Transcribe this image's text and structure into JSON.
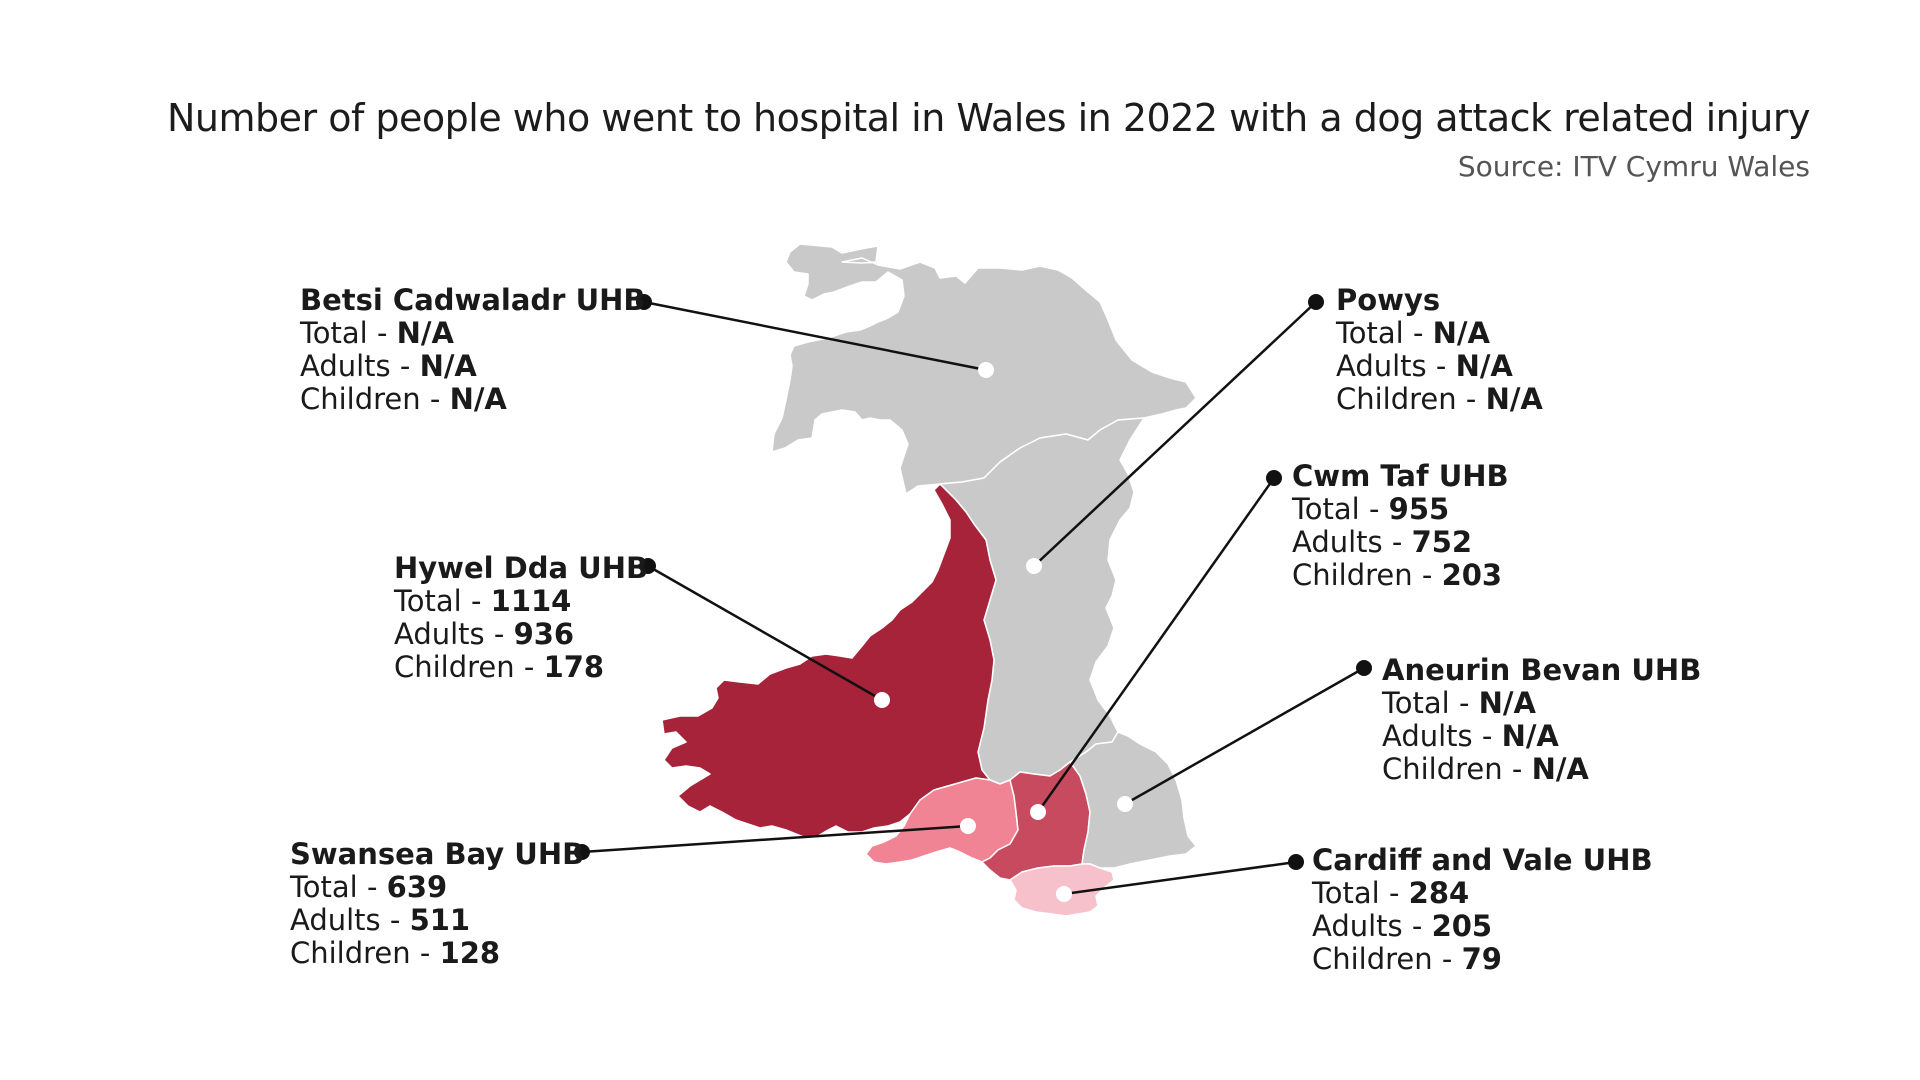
{
  "title": "Number of people who went to hospital in Wales in 2022 with a dog attack related injury",
  "source": "Source: ITV Cymru Wales",
  "colors": {
    "no_data": "#c9c9c9",
    "hywel_dda": "#a6233a",
    "cwm_taf": "#c74a5f",
    "swansea_bay": "#f08394",
    "cardiff_vale": "#f7c1cb",
    "leader_line": "#111111",
    "marker": "#ffffff"
  },
  "row_labels": {
    "total": "Total - ",
    "adults": "Adults - ",
    "children": "Children - "
  },
  "regions": [
    {
      "id": "betsi",
      "name": "Betsi Cadwaladr UHB",
      "total": "N/A",
      "adults": "N/A",
      "children": "N/A"
    },
    {
      "id": "powys",
      "name": "Powys",
      "total": "N/A",
      "adults": "N/A",
      "children": "N/A"
    },
    {
      "id": "cwmtaf",
      "name": "Cwm Taf UHB",
      "total": "955",
      "adults": "752",
      "children": "203"
    },
    {
      "id": "hywel",
      "name": "Hywel Dda UHB",
      "total": "1114",
      "adults": "936",
      "children": "178"
    },
    {
      "id": "aneurin",
      "name": "Aneurin Bevan UHB",
      "total": "N/A",
      "adults": "N/A",
      "children": "N/A"
    },
    {
      "id": "swansea",
      "name": "Swansea Bay UHB",
      "total": "639",
      "adults": "511",
      "children": "128"
    },
    {
      "id": "cardiff",
      "name": "Cardiff and Vale UHB",
      "total": "284",
      "adults": "205",
      "children": "79"
    }
  ]
}
